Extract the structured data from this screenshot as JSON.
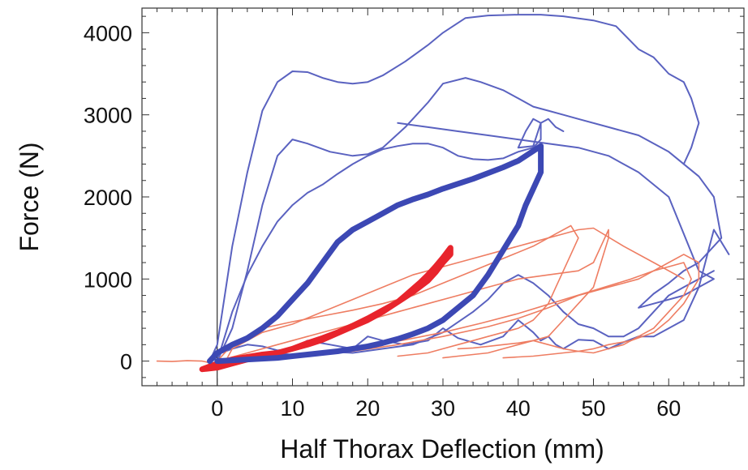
{
  "chart_data": {
    "type": "line",
    "title": "",
    "xlabel": "Half Thorax Deflection (mm)",
    "ylabel": "Force (N)",
    "xlim": [
      -10,
      70
    ],
    "ylim": [
      -300,
      4300
    ],
    "xticks": [
      0,
      10,
      20,
      30,
      40,
      50,
      60
    ],
    "yticks": [
      0,
      1000,
      2000,
      3000,
      4000
    ],
    "grid": false,
    "legend": "none",
    "colors": {
      "blue_thin": "#5a62c0",
      "blue_thick": "#3c48b4",
      "red_thin": "#ee7d62",
      "red_thick": "#e8242c"
    },
    "series": [
      {
        "color": "blue_thin",
        "width": 2,
        "x": [
          -1,
          0,
          2,
          4,
          6,
          8,
          10,
          12,
          14,
          16,
          18,
          20,
          22,
          25,
          28,
          30,
          33,
          36,
          40,
          43,
          46,
          50,
          53,
          56,
          58,
          60,
          62,
          63,
          64,
          63,
          62
        ],
        "y": [
          0,
          200,
          1400,
          2300,
          3050,
          3400,
          3530,
          3520,
          3450,
          3400,
          3380,
          3400,
          3480,
          3650,
          3850,
          4000,
          4180,
          4210,
          4220,
          4220,
          4200,
          4150,
          4080,
          3800,
          3700,
          3500,
          3400,
          3200,
          2900,
          2600,
          2400
        ]
      },
      {
        "color": "blue_thin",
        "width": 2,
        "x": [
          0,
          2,
          4,
          6,
          8,
          10,
          12,
          15,
          18,
          20,
          22,
          25,
          28,
          30,
          33,
          35,
          38,
          40,
          42,
          44,
          46,
          48,
          52,
          56,
          60,
          64,
          66,
          67,
          66,
          64,
          62,
          60,
          58,
          56,
          58,
          62,
          64,
          66,
          64,
          60,
          56,
          52,
          48,
          44,
          40,
          36,
          32,
          28,
          24
        ],
        "y": [
          0,
          400,
          1100,
          1900,
          2500,
          2700,
          2650,
          2550,
          2500,
          2520,
          2600,
          2850,
          3150,
          3380,
          3450,
          3400,
          3300,
          3200,
          3100,
          3050,
          3000,
          2950,
          2850,
          2750,
          2550,
          2250,
          2000,
          1500,
          1400,
          1200,
          1100,
          950,
          820,
          650,
          700,
          800,
          900,
          1000,
          1100,
          2000,
          2300,
          2500,
          2600,
          2650,
          2700,
          2750,
          2800,
          2850,
          2900
        ]
      },
      {
        "color": "blue_thin",
        "width": 2,
        "x": [
          0,
          2,
          4,
          6,
          8,
          10,
          12,
          14,
          16,
          18,
          20,
          22,
          24,
          26,
          28,
          30,
          32,
          34,
          36,
          38,
          40,
          42,
          43,
          43,
          42,
          41,
          40,
          42,
          43,
          44,
          45,
          46
        ],
        "y": [
          0,
          600,
          1050,
          1400,
          1700,
          1900,
          2050,
          2150,
          2280,
          2400,
          2500,
          2580,
          2620,
          2650,
          2650,
          2600,
          2500,
          2460,
          2450,
          2470,
          2550,
          2600,
          2700,
          2900,
          2950,
          2800,
          2600,
          2620,
          2900,
          2950,
          2850,
          2800
        ]
      },
      {
        "color": "blue_thin",
        "width": 2,
        "x": [
          -1,
          0,
          2,
          4,
          6,
          8,
          10,
          12,
          15,
          18,
          20,
          22,
          25,
          28,
          30,
          32,
          35,
          38,
          40,
          42,
          43,
          44,
          45,
          46,
          48,
          50,
          52,
          54,
          56,
          58,
          60,
          62,
          64,
          66,
          68
        ],
        "y": [
          0,
          80,
          150,
          200,
          180,
          130,
          150,
          250,
          200,
          150,
          300,
          250,
          200,
          250,
          400,
          280,
          200,
          300,
          500,
          350,
          250,
          300,
          200,
          150,
          260,
          250,
          150,
          230,
          300,
          300,
          400,
          500,
          900,
          1600,
          1300
        ]
      },
      {
        "color": "blue_thin",
        "width": 2,
        "x": [
          0,
          3,
          6,
          10,
          14,
          18,
          22,
          26,
          30,
          34,
          36,
          38,
          40,
          42,
          44,
          46,
          48,
          50,
          52,
          54,
          56,
          58,
          60,
          62,
          64,
          66
        ],
        "y": [
          0,
          50,
          100,
          80,
          120,
          100,
          150,
          200,
          350,
          600,
          750,
          950,
          1050,
          950,
          800,
          600,
          450,
          400,
          300,
          300,
          400,
          600,
          800,
          900,
          1000,
          1100
        ]
      },
      {
        "color": "red_thin",
        "width": 1.6,
        "x": [
          -8,
          -6,
          -4,
          -2,
          -1,
          0,
          1,
          2,
          4,
          6,
          10,
          14,
          18,
          22,
          26,
          30,
          34,
          38,
          42,
          46,
          48,
          50,
          54,
          58,
          62
        ],
        "y": [
          0,
          -5,
          5,
          0,
          -20,
          -40,
          -20,
          150,
          250,
          350,
          450,
          600,
          750,
          900,
          1050,
          1150,
          1250,
          1350,
          1450,
          1550,
          1600,
          1620,
          1400,
          1200,
          1000
        ]
      },
      {
        "color": "red_thin",
        "width": 1.6,
        "x": [
          0,
          2,
          4,
          6,
          10,
          14,
          18,
          22,
          26,
          30,
          34,
          38,
          42,
          45,
          47,
          48,
          47,
          46,
          45,
          44,
          42,
          40,
          38,
          36,
          34,
          32,
          30,
          28,
          26,
          24
        ],
        "y": [
          0,
          200,
          300,
          400,
          480,
          550,
          620,
          700,
          800,
          950,
          1100,
          1250,
          1400,
          1550,
          1650,
          1500,
          1300,
          1100,
          900,
          700,
          500,
          400,
          350,
          300,
          250,
          200,
          150,
          100,
          80,
          60
        ]
      },
      {
        "color": "red_thin",
        "width": 1.6,
        "x": [
          0,
          4,
          8,
          12,
          16,
          20,
          24,
          28,
          32,
          36,
          40,
          44,
          48,
          50,
          51,
          52,
          52,
          51,
          50,
          48,
          46,
          44,
          42,
          40,
          38,
          36,
          34,
          32
        ],
        "y": [
          0,
          100,
          200,
          300,
          400,
          500,
          600,
          700,
          800,
          900,
          1000,
          1050,
          1100,
          1200,
          1400,
          1600,
          1500,
          1200,
          900,
          700,
          500,
          300,
          250,
          220,
          200,
          180,
          160,
          150
        ]
      },
      {
        "color": "red_thin",
        "width": 1.6,
        "x": [
          0,
          6,
          12,
          18,
          24,
          30,
          36,
          40,
          44,
          48,
          52,
          56,
          58,
          60,
          62,
          63,
          62,
          60,
          58,
          56,
          54,
          52,
          50,
          48,
          46,
          44,
          42,
          40,
          38,
          36,
          34,
          32,
          30
        ],
        "y": [
          0,
          50,
          80,
          120,
          200,
          300,
          420,
          520,
          650,
          800,
          900,
          1000,
          1100,
          1150,
          1200,
          1000,
          800,
          600,
          400,
          300,
          200,
          150,
          100,
          120,
          150,
          200,
          250,
          200,
          150,
          100,
          80,
          60,
          40
        ]
      },
      {
        "color": "red_thin",
        "width": 1.6,
        "x": [
          0,
          5,
          10,
          15,
          20,
          25,
          30,
          35,
          40,
          45,
          50,
          55,
          58,
          60,
          62,
          64,
          64,
          62,
          60,
          58,
          55,
          52,
          50,
          48,
          46,
          44,
          42,
          40,
          38
        ],
        "y": [
          0,
          40,
          80,
          120,
          180,
          260,
          350,
          460,
          580,
          720,
          860,
          1000,
          1100,
          1200,
          1300,
          1200,
          1000,
          700,
          500,
          350,
          250,
          200,
          150,
          120,
          100,
          80,
          60,
          50,
          40
        ]
      },
      {
        "color": "red_thick",
        "width": 7,
        "x": [
          -2,
          0,
          2,
          4,
          6,
          8,
          10,
          12,
          14,
          16,
          18,
          20,
          22,
          24,
          26,
          28,
          29,
          30,
          31,
          31,
          30,
          29,
          28,
          27,
          26,
          25,
          24,
          23,
          22,
          21,
          20,
          18,
          16,
          14,
          12,
          10,
          8,
          6,
          4,
          2,
          0,
          -2
        ],
        "y": [
          -100,
          -30,
          20,
          50,
          80,
          100,
          150,
          220,
          280,
          350,
          430,
          520,
          620,
          720,
          840,
          980,
          1080,
          1200,
          1300,
          1380,
          1260,
          1150,
          1050,
          960,
          880,
          800,
          720,
          660,
          600,
          550,
          500,
          420,
          340,
          260,
          200,
          150,
          100,
          60,
          20,
          -30,
          -80,
          -100
        ]
      },
      {
        "color": "blue_thick",
        "width": 7,
        "x": [
          -1,
          0,
          1,
          2,
          4,
          6,
          8,
          10,
          12,
          14,
          16,
          18,
          20,
          22,
          24,
          26,
          28,
          30,
          32,
          34,
          36,
          38,
          40,
          42,
          43,
          43,
          42,
          41,
          40,
          38,
          36,
          34,
          32,
          30,
          28,
          26,
          24,
          22,
          20,
          18,
          16,
          14,
          12,
          10,
          8,
          6,
          4,
          2,
          0
        ],
        "y": [
          0,
          100,
          150,
          200,
          280,
          400,
          550,
          750,
          950,
          1200,
          1450,
          1600,
          1700,
          1800,
          1900,
          1970,
          2030,
          2100,
          2160,
          2220,
          2290,
          2360,
          2440,
          2560,
          2620,
          2300,
          2100,
          1900,
          1650,
          1350,
          1050,
          800,
          650,
          500,
          400,
          330,
          270,
          220,
          180,
          150,
          120,
          100,
          80,
          60,
          40,
          30,
          20,
          10,
          0
        ]
      }
    ]
  }
}
